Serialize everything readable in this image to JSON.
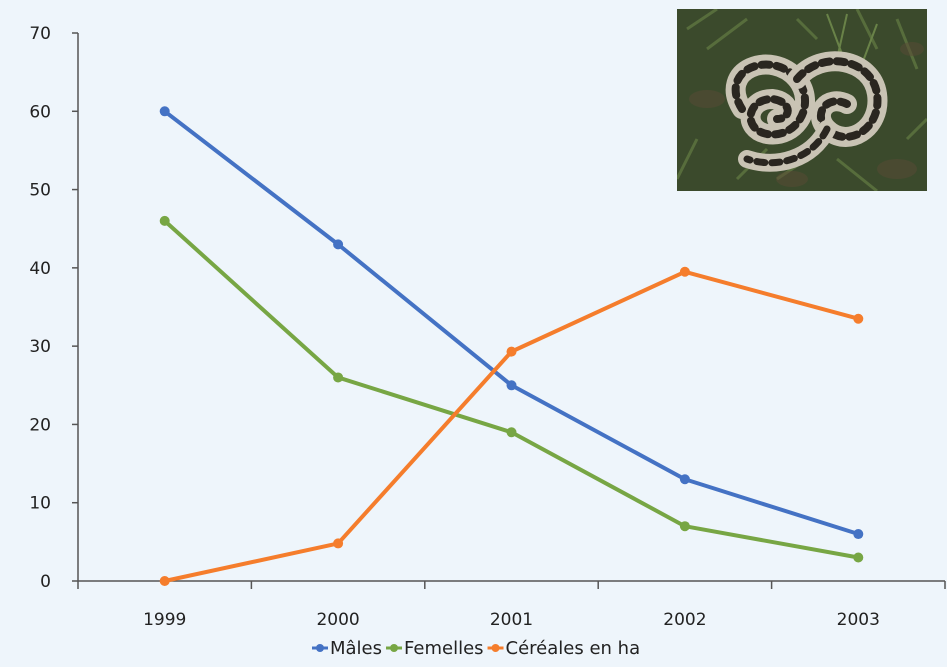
{
  "chart_data": {
    "type": "line",
    "categories": [
      "1999",
      "2000",
      "2001",
      "2002",
      "2003"
    ],
    "ylim": [
      0,
      70
    ],
    "yticks": [
      "0",
      "10",
      "20",
      "30",
      "40",
      "50",
      "60",
      "70"
    ],
    "grid": false,
    "legend_position": "bottom",
    "series": [
      {
        "name": "Mâles",
        "color": "#4472c4",
        "values": [
          60,
          43,
          25,
          13,
          6
        ]
      },
      {
        "name": "Femelles",
        "color": "#77a644",
        "values": [
          46,
          26,
          19,
          7,
          3
        ]
      },
      {
        "name": "Céréales en ha",
        "color": "#f57d2c",
        "values": [
          0,
          4.8,
          29.3,
          39.5,
          33.5
        ]
      }
    ]
  },
  "photo": {
    "icon": "viper-snake-icon"
  }
}
